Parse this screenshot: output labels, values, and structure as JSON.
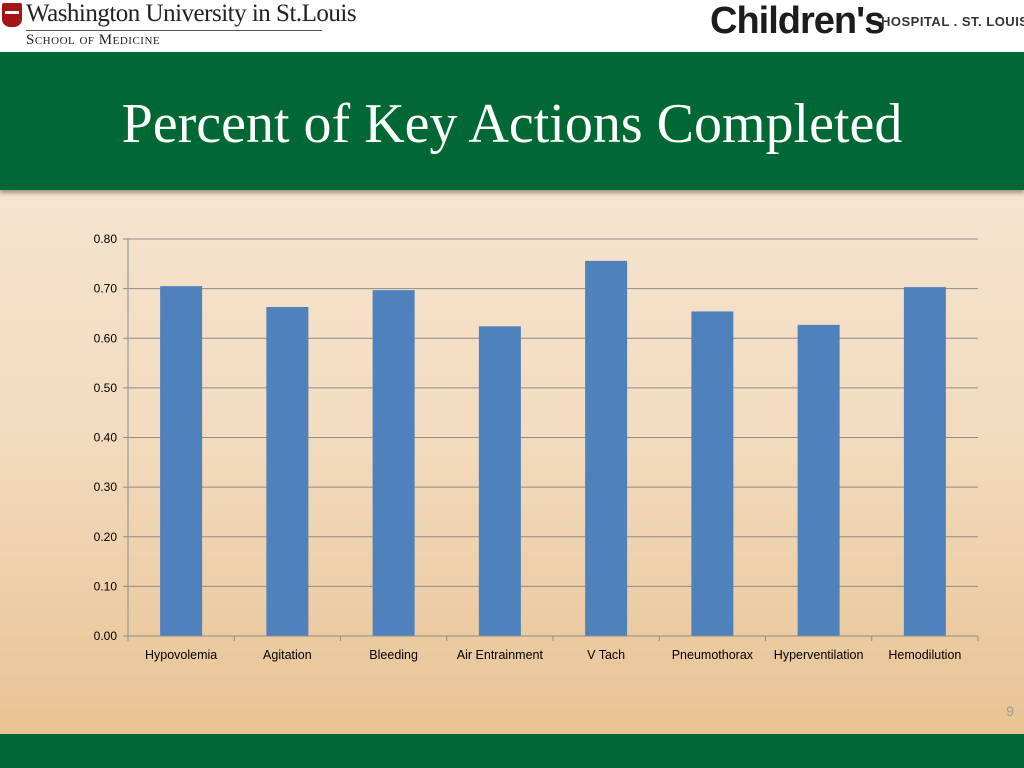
{
  "header": {
    "left_logo": {
      "name": "Washington University in St.Louis",
      "subtitle": "School of Medicine"
    },
    "right_logo": {
      "name": "Children's",
      "suffix": "HOSPITAL . ST. LOUIS"
    }
  },
  "slide": {
    "title": "Percent of Key Actions Completed",
    "page_number": "9"
  },
  "colors": {
    "band": "#006834",
    "bar": "#4f81bd",
    "grid": "#8c8c8c"
  },
  "chart_data": {
    "type": "bar",
    "categories": [
      "Hypovolemia",
      "Agitation",
      "Bleeding",
      "Air Entrainment",
      "V Tach",
      "Pneumothorax",
      "Hyperventilation",
      "Hemodilution"
    ],
    "values": [
      0.705,
      0.663,
      0.697,
      0.624,
      0.756,
      0.654,
      0.627,
      0.703
    ],
    "ylim": [
      0,
      0.8
    ],
    "yticks": [
      "0.00",
      "0.10",
      "0.20",
      "0.30",
      "0.40",
      "0.50",
      "0.60",
      "0.70",
      "0.80"
    ],
    "title": "",
    "xlabel": "",
    "ylabel": "",
    "grid": true,
    "legend": "none"
  }
}
